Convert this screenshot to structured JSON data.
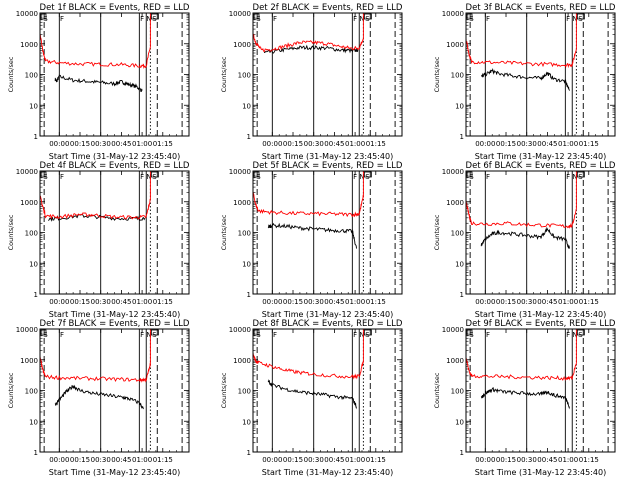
{
  "figure": {
    "ylabel": "Counts/sec",
    "xlabel": "Start Time (31-May-12 23:45:40)",
    "colors": {
      "events": "#000000",
      "lld": "#ff0000",
      "axes": "#000000"
    },
    "ytick_labels": [
      "1",
      "10",
      "100",
      "1000",
      "10000"
    ],
    "xtick_labels": [
      "00:00",
      "00:15",
      "00:30",
      "00:45",
      "01:00",
      "01:15"
    ]
  },
  "chart_data": [
    {
      "type": "line",
      "title": "Det 1f BLACK = Events, RED = LLD",
      "yscale": "log",
      "ylim": [
        1,
        10000
      ],
      "xlim_min": [
        -14,
        94
      ],
      "markers": [
        "S",
        "F",
        "F",
        "N",
        "S"
      ],
      "series": [
        {
          "name": "Events",
          "points": [
            [
              -3,
              70
            ],
            [
              -2,
              60
            ],
            [
              0,
              85
            ],
            [
              10,
              65
            ],
            [
              20,
              60
            ],
            [
              30,
              55
            ],
            [
              40,
              50
            ],
            [
              45,
              58
            ],
            [
              50,
              48
            ],
            [
              56,
              40
            ],
            [
              60,
              30
            ]
          ]
        },
        {
          "name": "LLD",
          "points": [
            [
              -14,
              2000
            ],
            [
              -12,
              600
            ],
            [
              -10,
              270
            ],
            [
              0,
              240
            ],
            [
              15,
              220
            ],
            [
              30,
              215
            ],
            [
              45,
              210
            ],
            [
              58,
              190
            ],
            [
              63,
              195
            ],
            [
              66,
              800
            ],
            [
              66,
              10000
            ]
          ]
        }
      ]
    },
    {
      "type": "line",
      "title": "Det 2f BLACK = Events, RED = LLD",
      "yscale": "log",
      "ylim": [
        1,
        10000
      ],
      "xlim_min": [
        -14,
        94
      ],
      "markers": [
        "S",
        "F",
        "F",
        "N",
        "S"
      ],
      "series": [
        {
          "name": "Events",
          "points": [
            [
              -6,
              520
            ],
            [
              0,
              550
            ],
            [
              10,
              650
            ],
            [
              20,
              750
            ],
            [
              30,
              750
            ],
            [
              40,
              720
            ],
            [
              50,
              620
            ],
            [
              58,
              600
            ],
            [
              62,
              620
            ]
          ]
        },
        {
          "name": "LLD",
          "points": [
            [
              -14,
              2000
            ],
            [
              -12,
              1100
            ],
            [
              -8,
              620
            ],
            [
              0,
              660
            ],
            [
              10,
              850
            ],
            [
              20,
              1100
            ],
            [
              30,
              1100
            ],
            [
              40,
              1000
            ],
            [
              50,
              800
            ],
            [
              58,
              700
            ],
            [
              63,
              750
            ],
            [
              66,
              1500
            ],
            [
              66,
              10000
            ]
          ]
        }
      ]
    },
    {
      "type": "line",
      "title": "Det 3f BLACK = Events, RED = LLD",
      "yscale": "log",
      "ylim": [
        1,
        10000
      ],
      "xlim_min": [
        -14,
        94
      ],
      "markers": [
        "S",
        "F",
        "F",
        "N",
        "S"
      ],
      "series": [
        {
          "name": "Events",
          "points": [
            [
              -3,
              85
            ],
            [
              0,
              100
            ],
            [
              5,
              130
            ],
            [
              10,
              105
            ],
            [
              20,
              90
            ],
            [
              30,
              80
            ],
            [
              40,
              75
            ],
            [
              45,
              110
            ],
            [
              50,
              70
            ],
            [
              58,
              60
            ],
            [
              61,
              30
            ]
          ]
        },
        {
          "name": "LLD",
          "points": [
            [
              -14,
              1500
            ],
            [
              -12,
              500
            ],
            [
              -10,
              260
            ],
            [
              0,
              250
            ],
            [
              15,
              240
            ],
            [
              30,
              225
            ],
            [
              45,
              215
            ],
            [
              58,
              205
            ],
            [
              63,
              210
            ],
            [
              66,
              700
            ],
            [
              66,
              10000
            ]
          ]
        }
      ]
    },
    {
      "type": "line",
      "title": "Det 4f BLACK = Events, RED = LLD",
      "yscale": "log",
      "ylim": [
        1,
        10000
      ],
      "xlim_min": [
        -14,
        94
      ],
      "markers": [
        "S",
        "F",
        "F",
        "N",
        "S"
      ],
      "series": [
        {
          "name": "Events",
          "points": [
            [
              -8,
              280
            ],
            [
              0,
              290
            ],
            [
              15,
              350
            ],
            [
              25,
              330
            ],
            [
              40,
              290
            ],
            [
              55,
              280
            ],
            [
              62,
              290
            ]
          ]
        },
        {
          "name": "LLD",
          "points": [
            [
              -14,
              1500
            ],
            [
              -12,
              700
            ],
            [
              -10,
              350
            ],
            [
              0,
              320
            ],
            [
              15,
              390
            ],
            [
              25,
              370
            ],
            [
              40,
              320
            ],
            [
              55,
              310
            ],
            [
              63,
              320
            ],
            [
              66,
              1200
            ],
            [
              66,
              10000
            ]
          ]
        }
      ]
    },
    {
      "type": "line",
      "title": "Det 5f BLACK = Events, RED = LLD",
      "yscale": "log",
      "ylim": [
        1,
        10000
      ],
      "xlim_min": [
        -14,
        94
      ],
      "markers": [
        "S",
        "F",
        "F",
        "N",
        "S"
      ],
      "series": [
        {
          "name": "Events",
          "points": [
            [
              -3,
              150
            ],
            [
              0,
              170
            ],
            [
              10,
              160
            ],
            [
              20,
              140
            ],
            [
              30,
              130
            ],
            [
              40,
              120
            ],
            [
              50,
              115
            ],
            [
              58,
              110
            ],
            [
              61,
              30
            ]
          ]
        },
        {
          "name": "LLD",
          "points": [
            [
              -14,
              2000
            ],
            [
              -12,
              800
            ],
            [
              -10,
              500
            ],
            [
              0,
              450
            ],
            [
              15,
              420
            ],
            [
              30,
              410
            ],
            [
              45,
              400
            ],
            [
              58,
              380
            ],
            [
              63,
              400
            ],
            [
              66,
              1500
            ],
            [
              66,
              10000
            ]
          ]
        }
      ]
    },
    {
      "type": "line",
      "title": "Det 6f BLACK = Events, RED = LLD",
      "yscale": "log",
      "ylim": [
        1,
        10000
      ],
      "xlim_min": [
        -14,
        94
      ],
      "markers": [
        "S",
        "F",
        "F",
        "N",
        "S"
      ],
      "series": [
        {
          "name": "Events",
          "points": [
            [
              -3,
              40
            ],
            [
              0,
              60
            ],
            [
              5,
              90
            ],
            [
              10,
              100
            ],
            [
              20,
              90
            ],
            [
              30,
              80
            ],
            [
              40,
              70
            ],
            [
              45,
              130
            ],
            [
              50,
              70
            ],
            [
              58,
              60
            ],
            [
              61,
              30
            ]
          ]
        },
        {
          "name": "LLD",
          "points": [
            [
              -14,
              1000
            ],
            [
              -12,
              400
            ],
            [
              -10,
              200
            ],
            [
              0,
              190
            ],
            [
              15,
              200
            ],
            [
              30,
              180
            ],
            [
              45,
              170
            ],
            [
              58,
              160
            ],
            [
              63,
              165
            ],
            [
              66,
              600
            ],
            [
              66,
              10000
            ]
          ]
        }
      ]
    },
    {
      "type": "line",
      "title": "Det 7f BLACK = Events, RED = LLD",
      "yscale": "log",
      "ylim": [
        1,
        10000
      ],
      "xlim_min": [
        -14,
        94
      ],
      "markers": [
        "S",
        "F",
        "F",
        "N",
        "S"
      ],
      "series": [
        {
          "name": "Events",
          "points": [
            [
              -3,
              35
            ],
            [
              0,
              50
            ],
            [
              5,
              90
            ],
            [
              10,
              140
            ],
            [
              15,
              100
            ],
            [
              25,
              80
            ],
            [
              35,
              70
            ],
            [
              45,
              60
            ],
            [
              50,
              55
            ],
            [
              58,
              40
            ],
            [
              61,
              25
            ]
          ]
        },
        {
          "name": "LLD",
          "points": [
            [
              -14,
              1200
            ],
            [
              -12,
              450
            ],
            [
              -10,
              280
            ],
            [
              0,
              260
            ],
            [
              15,
              250
            ],
            [
              30,
              240
            ],
            [
              45,
              230
            ],
            [
              58,
              220
            ],
            [
              63,
              225
            ],
            [
              66,
              700
            ],
            [
              66,
              10000
            ]
          ]
        }
      ]
    },
    {
      "type": "line",
      "title": "Det 8f BLACK = Events, RED = LLD",
      "yscale": "log",
      "ylim": [
        1,
        10000
      ],
      "xlim_min": [
        -14,
        94
      ],
      "markers": [
        "S",
        "F",
        "F",
        "N",
        "S"
      ],
      "series": [
        {
          "name": "Events",
          "points": [
            [
              -3,
              200
            ],
            [
              0,
              150
            ],
            [
              10,
              110
            ],
            [
              20,
              90
            ],
            [
              30,
              80
            ],
            [
              40,
              70
            ],
            [
              50,
              60
            ],
            [
              58,
              55
            ],
            [
              61,
              30
            ]
          ]
        },
        {
          "name": "LLD",
          "points": [
            [
              -14,
              1500
            ],
            [
              -12,
              900
            ],
            [
              -10,
              800
            ],
            [
              0,
              600
            ],
            [
              10,
              450
            ],
            [
              20,
              380
            ],
            [
              30,
              340
            ],
            [
              45,
              300
            ],
            [
              58,
              280
            ],
            [
              63,
              290
            ],
            [
              66,
              900
            ],
            [
              66,
              10000
            ]
          ]
        }
      ]
    },
    {
      "type": "line",
      "title": "Det 9f BLACK = Events, RED = LLD",
      "yscale": "log",
      "ylim": [
        1,
        10000
      ],
      "xlim_min": [
        -14,
        94
      ],
      "markers": [
        "S",
        "F",
        "F",
        "N",
        "S"
      ],
      "series": [
        {
          "name": "Events",
          "points": [
            [
              -3,
              60
            ],
            [
              0,
              80
            ],
            [
              5,
              110
            ],
            [
              10,
              95
            ],
            [
              20,
              85
            ],
            [
              30,
              80
            ],
            [
              40,
              75
            ],
            [
              45,
              90
            ],
            [
              50,
              70
            ],
            [
              58,
              60
            ],
            [
              61,
              30
            ]
          ]
        },
        {
          "name": "LLD",
          "points": [
            [
              -14,
              1200
            ],
            [
              -12,
              450
            ],
            [
              -10,
              300
            ],
            [
              0,
              290
            ],
            [
              15,
              280
            ],
            [
              30,
              270
            ],
            [
              45,
              260
            ],
            [
              58,
              250
            ],
            [
              63,
              255
            ],
            [
              66,
              800
            ],
            [
              66,
              10000
            ]
          ]
        }
      ]
    }
  ]
}
